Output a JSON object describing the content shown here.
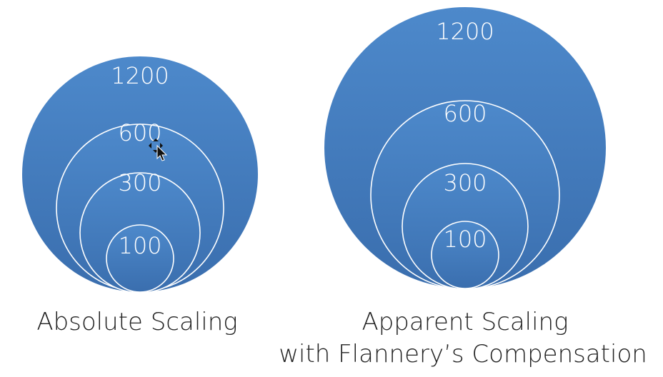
{
  "left_panel": {
    "caption": "Absolute Scaling",
    "circles": [
      {
        "label": "1200"
      },
      {
        "label": "600"
      },
      {
        "label": "300"
      },
      {
        "label": "100"
      }
    ]
  },
  "right_panel": {
    "caption_line1": "Apparent Scaling",
    "caption_line2": "with Flannery’s Compensation",
    "circles": [
      {
        "label": "1200"
      },
      {
        "label": "600"
      },
      {
        "label": "300"
      },
      {
        "label": "100"
      }
    ]
  },
  "colors": {
    "circle_fill_top": "#4a86c8",
    "circle_fill_bottom": "#3a6fb0",
    "ring_stroke": "#ffffff",
    "caption_text": "#222222"
  },
  "icons": {
    "cursor": "move-cursor-icon"
  }
}
